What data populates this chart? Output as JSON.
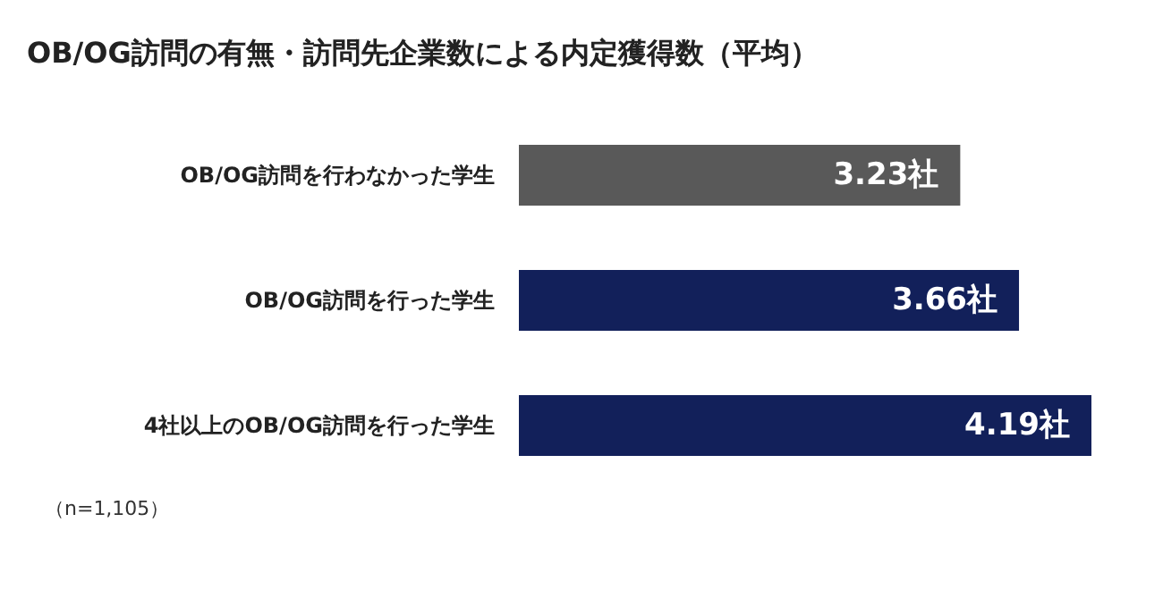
{
  "chart_data": {
    "type": "bar",
    "orientation": "horizontal",
    "title": "OB/OG訪問の有無・訪問先企業数による内定獲得数（平均）",
    "categories": [
      "OB/OG訪問を行わなかった学生",
      "OB/OG訪問を行った学生",
      "4社以上のOB/OG訪問を行った学生"
    ],
    "values": [
      3.23,
      3.66,
      4.19
    ],
    "colors": [
      "#595959",
      "#12205a",
      "#12205a"
    ],
    "value_labels": [
      "3.23社",
      "3.66社",
      "4.19社"
    ],
    "annotations": [
      "（n=1,105）"
    ],
    "grid": false
  }
}
